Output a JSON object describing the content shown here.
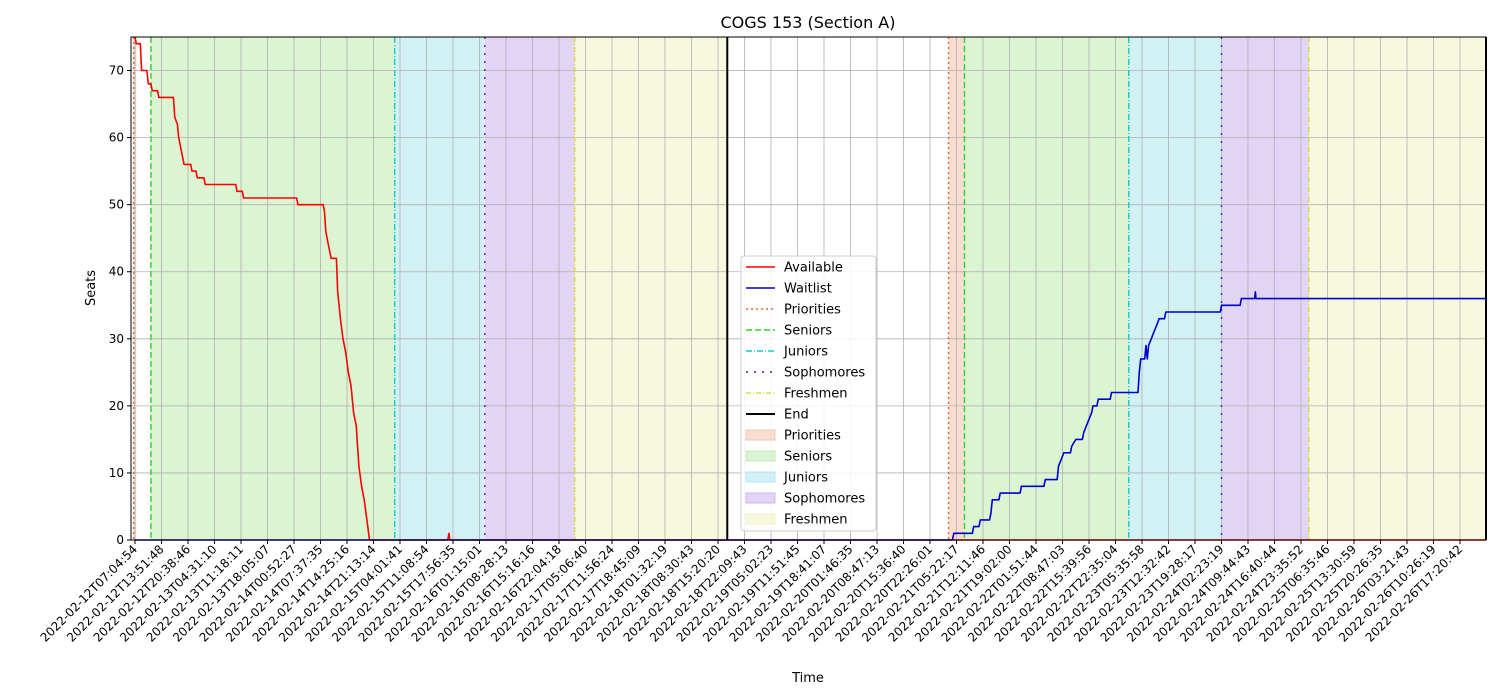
{
  "chart_data": {
    "type": "line",
    "title": "COGS 153 (Section A)",
    "xlabel": "Time",
    "ylabel": "Seats",
    "ylim": [
      0,
      75
    ],
    "yticks": [
      0,
      10,
      20,
      30,
      40,
      50,
      60,
      70
    ],
    "grid": true,
    "legend_placement": "center-bottom",
    "x_categories": [
      "2022-02-12T07:04:54",
      "2022-02-12T13:51:48",
      "2022-02-12T20:38:46",
      "2022-02-13T04:31:10",
      "2022-02-13T11:18:11",
      "2022-02-13T18:05:07",
      "2022-02-14T00:52:27",
      "2022-02-14T07:37:35",
      "2022-02-14T14:25:16",
      "2022-02-14T21:13:14",
      "2022-02-15T04:01:41",
      "2022-02-15T11:08:54",
      "2022-02-15T17:56:35",
      "2022-02-16T01:15:01",
      "2022-02-16T08:28:13",
      "2022-02-16T15:16:16",
      "2022-02-16T22:04:18",
      "2022-02-17T05:06:40",
      "2022-02-17T11:56:24",
      "2022-02-17T18:45:09",
      "2022-02-18T01:32:19",
      "2022-02-18T08:30:43",
      "2022-02-18T15:20:20",
      "2022-02-18T22:09:43",
      "2022-02-19T05:02:23",
      "2022-02-19T11:51:45",
      "2022-02-19T18:41:07",
      "2022-02-20T01:46:35",
      "2022-02-20T08:47:13",
      "2022-02-20T15:36:40",
      "2022-02-20T22:26:01",
      "2022-02-21T05:22:17",
      "2022-02-21T12:11:46",
      "2022-02-21T19:02:00",
      "2022-02-22T01:51:44",
      "2022-02-22T08:47:03",
      "2022-02-22T15:39:56",
      "2022-02-22T22:35:04",
      "2022-02-23T05:35:58",
      "2022-02-23T12:32:42",
      "2022-02-23T19:28:17",
      "2022-02-24T02:23:19",
      "2022-02-24T09:44:43",
      "2022-02-24T16:40:44",
      "2022-02-24T23:35:52",
      "2022-02-25T06:35:46",
      "2022-02-25T13:30:59",
      "2022-02-25T20:26:35",
      "2022-02-26T03:21:43",
      "2022-02-26T10:26:19",
      "2022-02-26T17:20:42"
    ],
    "phases": [
      {
        "name": "Priorities",
        "from": -0.05,
        "to": 0.05,
        "fill": "#f5c6b2",
        "line": "#e8642c",
        "dash": "2,3"
      },
      {
        "name": "Seniors",
        "from": 0.6,
        "to": 9.8,
        "fill": "#c3ecb2",
        "line": "#33cc33",
        "dash": "6,3"
      },
      {
        "name": "Juniors",
        "from": 9.8,
        "to": 13.2,
        "fill": "#b2e8ee",
        "line": "#11cccc",
        "dash": "6,2,1,2"
      },
      {
        "name": "Sophomores",
        "from": 13.2,
        "to": 16.6,
        "fill": "#cdb8ee",
        "line": "#6611cc",
        "dash": "2,6"
      },
      {
        "name": "Freshmen",
        "from": 16.6,
        "to": 22.35,
        "fill": "#f1f3c6",
        "line": "#dddd33",
        "dash": "5,2,1,2"
      },
      {
        "name": "Priorities",
        "from": 30.7,
        "to": 31.3,
        "fill": "#f5c6b2",
        "line": "#e8642c",
        "dash": "2,3"
      },
      {
        "name": "Seniors",
        "from": 31.3,
        "to": 37.5,
        "fill": "#c3ecb2",
        "line": "#33cc33",
        "dash": "6,3"
      },
      {
        "name": "Juniors",
        "from": 37.5,
        "to": 41.0,
        "fill": "#b2e8ee",
        "line": "#11cccc",
        "dash": "6,2,1,2"
      },
      {
        "name": "Sophomores",
        "from": 41.0,
        "to": 44.3,
        "fill": "#cdb8ee",
        "line": "#6611cc",
        "dash": "2,6"
      },
      {
        "name": "Freshmen",
        "from": 44.3,
        "to": 54.2,
        "fill": "#f1f3c6",
        "line": "#dddd33",
        "dash": "5,2,1,2"
      }
    ],
    "end_lines": [
      22.35,
      54.2
    ],
    "series": [
      {
        "name": "Available",
        "color": "#ff0000",
        "points": [
          [
            0.0,
            75
          ],
          [
            0.05,
            74
          ],
          [
            0.2,
            74
          ],
          [
            0.25,
            70
          ],
          [
            0.45,
            70
          ],
          [
            0.5,
            68
          ],
          [
            0.6,
            68
          ],
          [
            0.65,
            67
          ],
          [
            0.85,
            67
          ],
          [
            0.9,
            66
          ],
          [
            1.45,
            66
          ],
          [
            1.5,
            63
          ],
          [
            1.6,
            62
          ],
          [
            1.65,
            60
          ],
          [
            1.75,
            58
          ],
          [
            1.85,
            56
          ],
          [
            2.1,
            56
          ],
          [
            2.15,
            55
          ],
          [
            2.3,
            55
          ],
          [
            2.35,
            54
          ],
          [
            2.6,
            54
          ],
          [
            2.65,
            53
          ],
          [
            3.8,
            53
          ],
          [
            3.85,
            52
          ],
          [
            4.05,
            52
          ],
          [
            4.1,
            51
          ],
          [
            6.1,
            51
          ],
          [
            6.15,
            50
          ],
          [
            7.1,
            50
          ],
          [
            7.15,
            49
          ],
          [
            7.2,
            46
          ],
          [
            7.3,
            44
          ],
          [
            7.4,
            42
          ],
          [
            7.6,
            42
          ],
          [
            7.65,
            37
          ],
          [
            7.75,
            33
          ],
          [
            7.85,
            30
          ],
          [
            7.95,
            28
          ],
          [
            8.05,
            25
          ],
          [
            8.15,
            23
          ],
          [
            8.25,
            19
          ],
          [
            8.35,
            17
          ],
          [
            8.38,
            15
          ],
          [
            8.45,
            11
          ],
          [
            8.55,
            8
          ],
          [
            8.65,
            6
          ],
          [
            8.75,
            3
          ],
          [
            8.85,
            0
          ],
          [
            11.8,
            0
          ],
          [
            11.85,
            1
          ],
          [
            11.88,
            0
          ],
          [
            54.2,
            0
          ]
        ]
      },
      {
        "name": "Waitlist",
        "color": "#0000cc",
        "points": [
          [
            0.0,
            0
          ],
          [
            30.85,
            0
          ],
          [
            30.9,
            1
          ],
          [
            31.6,
            1
          ],
          [
            31.65,
            2
          ],
          [
            31.85,
            2
          ],
          [
            31.9,
            3
          ],
          [
            32.25,
            3
          ],
          [
            32.3,
            4
          ],
          [
            32.35,
            6
          ],
          [
            32.6,
            6
          ],
          [
            32.65,
            7
          ],
          [
            33.4,
            7
          ],
          [
            33.45,
            8
          ],
          [
            34.3,
            8
          ],
          [
            34.35,
            9
          ],
          [
            34.8,
            9
          ],
          [
            34.85,
            11
          ],
          [
            34.95,
            12
          ],
          [
            35.05,
            13
          ],
          [
            35.3,
            13
          ],
          [
            35.35,
            14
          ],
          [
            35.5,
            15
          ],
          [
            35.75,
            15
          ],
          [
            35.8,
            16
          ],
          [
            35.9,
            17
          ],
          [
            36.0,
            18
          ],
          [
            36.1,
            19
          ],
          [
            36.15,
            20
          ],
          [
            36.3,
            20
          ],
          [
            36.35,
            21
          ],
          [
            36.8,
            21
          ],
          [
            36.85,
            22
          ],
          [
            37.85,
            22
          ],
          [
            37.9,
            25
          ],
          [
            37.95,
            27
          ],
          [
            38.1,
            27
          ],
          [
            38.15,
            29
          ],
          [
            38.2,
            27
          ],
          [
            38.25,
            29
          ],
          [
            38.35,
            30
          ],
          [
            38.45,
            31
          ],
          [
            38.55,
            32
          ],
          [
            38.65,
            33
          ],
          [
            38.85,
            33
          ],
          [
            38.9,
            34
          ],
          [
            40.95,
            34
          ],
          [
            41.0,
            35
          ],
          [
            41.7,
            35
          ],
          [
            41.75,
            36
          ],
          [
            42.25,
            36
          ],
          [
            42.28,
            37
          ],
          [
            42.3,
            36
          ],
          [
            54.2,
            36
          ]
        ]
      }
    ],
    "legend": [
      {
        "label": "Available",
        "kind": "line",
        "color": "#ff0000",
        "dash": ""
      },
      {
        "label": "Waitlist",
        "kind": "line",
        "color": "#0000cc",
        "dash": ""
      },
      {
        "label": "Priorities",
        "kind": "line",
        "color": "#e8642c",
        "dash": "2,3"
      },
      {
        "label": "Seniors",
        "kind": "line",
        "color": "#33cc33",
        "dash": "6,3"
      },
      {
        "label": "Juniors",
        "kind": "line",
        "color": "#11cccc",
        "dash": "6,2,1,2"
      },
      {
        "label": "Sophomores",
        "kind": "line",
        "color": "#6611cc",
        "dash": "2,6"
      },
      {
        "label": "Freshmen",
        "kind": "line",
        "color": "#dddd33",
        "dash": "5,2,1,2"
      },
      {
        "label": "End",
        "kind": "line",
        "color": "#000000",
        "dash": ""
      },
      {
        "label": "Priorities",
        "kind": "patch",
        "color": "#f5c6b2"
      },
      {
        "label": "Seniors",
        "kind": "patch",
        "color": "#c3ecb2"
      },
      {
        "label": "Juniors",
        "kind": "patch",
        "color": "#b2e8ee"
      },
      {
        "label": "Sophomores",
        "kind": "patch",
        "color": "#cdb8ee"
      },
      {
        "label": "Freshmen",
        "kind": "patch",
        "color": "#f1f3c6"
      }
    ]
  }
}
